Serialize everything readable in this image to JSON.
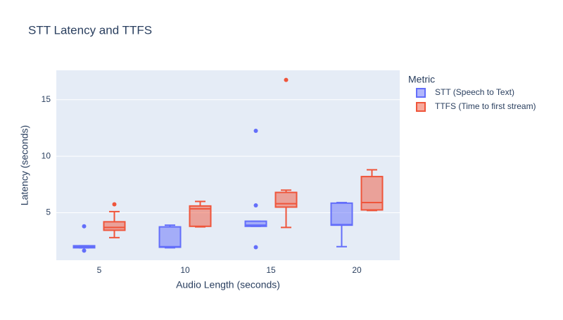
{
  "chart_data": {
    "type": "box",
    "title": "STT Latency and TTFS",
    "x_label": "Audio Length (seconds)",
    "y_label": "Latency (seconds)",
    "legend_title": "Metric",
    "categories": [
      "5",
      "10",
      "15",
      "20"
    ],
    "ylim": [
      0.8,
      17.6
    ],
    "yticks": [
      5,
      10,
      15
    ],
    "grid": true,
    "series": [
      {
        "name": "STT (Speech to Text)",
        "color": "#636efa",
        "min": [
          1.9,
          1.9,
          3.8,
          2.0
        ],
        "q1": [
          1.9,
          1.95,
          3.8,
          3.9
        ],
        "median": [
          2.0,
          2.0,
          3.9,
          3.95
        ],
        "q3": [
          2.08,
          3.75,
          4.25,
          5.85
        ],
        "max": [
          2.08,
          3.9,
          4.25,
          5.9
        ],
        "outliers": [
          [
            3.8,
            1.65
          ],
          [],
          [
            12.25,
            5.65,
            1.95
          ],
          []
        ]
      },
      {
        "name": "TTFS (Time to first stream)",
        "color": "#EF553B",
        "min": [
          2.8,
          3.75,
          3.7,
          5.2
        ],
        "q1": [
          3.45,
          3.8,
          5.5,
          5.25
        ],
        "median": [
          3.7,
          5.35,
          5.8,
          5.9
        ],
        "q3": [
          4.2,
          5.6,
          6.8,
          8.2
        ],
        "max": [
          5.1,
          6.0,
          7.0,
          8.8
        ],
        "outliers": [
          [
            5.75
          ],
          [],
          [
            16.75
          ],
          []
        ]
      }
    ]
  }
}
